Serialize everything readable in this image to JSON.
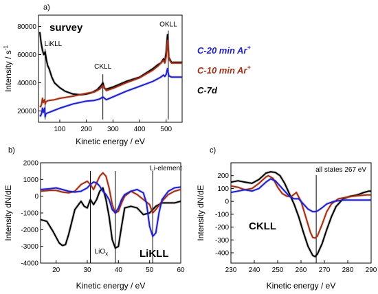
{
  "panels": {
    "a": {
      "label": "a)",
      "title": "survey"
    },
    "b": {
      "label": "b)",
      "title": "LiKLL"
    },
    "c": {
      "label": "c)",
      "title": "CKLL"
    }
  },
  "legend": [
    {
      "name": "C-20 min Ar",
      "sup": "+",
      "color": "#2020c8"
    },
    {
      "name": "C-10 min Ar",
      "sup": "+",
      "color": "#a03018"
    },
    {
      "name": "C-7d",
      "sup": "",
      "color": "#000000"
    }
  ],
  "chart_data": [
    {
      "id": "a",
      "type": "line",
      "title": "survey",
      "xlabel": "Kinetic energy / eV",
      "ylabel": "Intensity / s",
      "ylabel_sup": "-1",
      "xlim": [
        20,
        560
      ],
      "ylim": [
        12000,
        88000
      ],
      "xticks": [
        100,
        200,
        300,
        400,
        500
      ],
      "yticks": [
        20000,
        40000,
        60000,
        80000
      ],
      "annotations": [
        {
          "text": "LiKLL",
          "x": 45,
          "y": 66000,
          "line_from": 64000,
          "line_to": 14000
        },
        {
          "text": "CKLL",
          "x": 262,
          "y": 50000,
          "line_from": 46000,
          "line_to": 14000
        },
        {
          "text": "OKLL",
          "x": 508,
          "y": 80000,
          "line_from": 77000,
          "line_to": 14000
        }
      ],
      "series": [
        {
          "name": "C-7d",
          "color": "#000000",
          "x": [
            25,
            30,
            35,
            40,
            45,
            50,
            55,
            60,
            70,
            80,
            100,
            120,
            150,
            180,
            200,
            220,
            240,
            250,
            255,
            262,
            268,
            275,
            300,
            350,
            400,
            450,
            470,
            480,
            490,
            495,
            500,
            505,
            510,
            520,
            540,
            560
          ],
          "y": [
            76000,
            68000,
            63000,
            60000,
            62000,
            56000,
            52000,
            50000,
            44000,
            40000,
            36500,
            34000,
            32000,
            31500,
            32000,
            33000,
            35000,
            37000,
            38000,
            40000,
            36000,
            35500,
            37000,
            41000,
            44000,
            50000,
            53000,
            54000,
            57000,
            55000,
            62000,
            74000,
            58000,
            54500,
            54500,
            54500
          ]
        },
        {
          "name": "C-10 min Ar+",
          "color": "#a03018",
          "x": [
            25,
            28,
            32,
            35,
            38,
            40,
            43,
            45,
            48,
            52,
            60,
            80,
            100,
            150,
            200,
            230,
            250,
            262,
            275,
            300,
            350,
            400,
            450,
            470,
            480,
            490,
            495,
            500,
            505,
            510,
            520,
            540,
            560
          ],
          "y": [
            23500,
            23000,
            25000,
            29000,
            26000,
            27000,
            28000,
            25000,
            26500,
            27000,
            27500,
            28000,
            29000,
            30500,
            32500,
            33500,
            35500,
            38000,
            34500,
            36000,
            40000,
            43500,
            49000,
            52000,
            54000,
            56000,
            54000,
            58500,
            70000,
            57000,
            54000,
            54000,
            54000
          ]
        },
        {
          "name": "C-20 min Ar+",
          "color": "#2020c8",
          "x": [
            25,
            28,
            32,
            35,
            38,
            40,
            43,
            45,
            48,
            52,
            60,
            80,
            100,
            150,
            200,
            230,
            250,
            262,
            275,
            300,
            350,
            400,
            450,
            470,
            480,
            490,
            495,
            500,
            505,
            510,
            520,
            540,
            560
          ],
          "y": [
            17000,
            16500,
            18500,
            22000,
            19000,
            20000,
            22000,
            16000,
            18000,
            18500,
            19000,
            20500,
            22000,
            25000,
            27000,
            27500,
            28500,
            30000,
            28000,
            30000,
            34000,
            37500,
            41000,
            43000,
            44000,
            45500,
            44500,
            46000,
            50000,
            45000,
            44000,
            44000,
            44000
          ]
        }
      ]
    },
    {
      "id": "b",
      "type": "line",
      "title": "LiKLL",
      "xlabel": "Kinetic energy / eV",
      "ylabel": "Intensity dN/dE",
      "xlim": [
        15,
        60
      ],
      "ylim": [
        -4000,
        2000
      ],
      "xticks": [
        20,
        30,
        40,
        50,
        60
      ],
      "yticks": [
        -4000,
        -3000,
        -2000,
        -1000,
        0,
        1000,
        2000
      ],
      "annotations": [
        {
          "text": "LiO",
          "sub": "x",
          "x": 31,
          "y": -3700,
          "line_x": 31
        },
        {
          "text": "",
          "x": 39,
          "y": 0,
          "line_x": 39
        },
        {
          "text": "Li-element",
          "x": 51,
          "y": 2000,
          "line_x": 51
        }
      ],
      "series": [
        {
          "name": "C-7d",
          "color": "#000000",
          "x": [
            15,
            17,
            19,
            21,
            22,
            23,
            24,
            26,
            28,
            29,
            30,
            31,
            32,
            33,
            34,
            35,
            36,
            37,
            38,
            39,
            40,
            41,
            42,
            44,
            46,
            48,
            50,
            52,
            54,
            56,
            58,
            60
          ],
          "y": [
            -1400,
            -1500,
            -2100,
            -2800,
            -2950,
            -2900,
            -2300,
            -800,
            -300,
            -600,
            -700,
            -200,
            -500,
            -200,
            300,
            500,
            -200,
            -1200,
            -2600,
            -3100,
            -3000,
            -1800,
            -700,
            -600,
            -700,
            -1100,
            -1000,
            -600,
            -400,
            -400,
            -400,
            -300
          ]
        },
        {
          "name": "C-10 min Ar+",
          "color": "#a03018",
          "x": [
            15,
            18,
            20,
            22,
            24,
            26,
            28,
            30,
            31,
            32,
            33,
            34,
            35,
            36,
            37,
            38,
            39,
            40,
            41,
            42,
            44,
            46,
            48,
            50,
            51,
            52,
            54,
            56,
            58,
            60
          ],
          "y": [
            300,
            350,
            350,
            250,
            200,
            300,
            700,
            900,
            700,
            400,
            800,
            1200,
            1400,
            1200,
            500,
            -500,
            -1000,
            -900,
            -400,
            0,
            300,
            100,
            -200,
            -500,
            -1000,
            -800,
            -300,
            100,
            300,
            400
          ]
        },
        {
          "name": "C-20 min Ar+",
          "color": "#2020c8",
          "x": [
            15,
            18,
            20,
            22,
            24,
            26,
            28,
            30,
            31,
            32,
            33,
            34,
            35,
            36,
            37,
            38,
            39,
            40,
            41,
            42,
            44,
            46,
            48,
            49,
            50,
            51,
            52,
            53,
            54,
            56,
            58,
            60
          ],
          "y": [
            400,
            450,
            500,
            400,
            300,
            250,
            300,
            500,
            700,
            850,
            800,
            600,
            300,
            100,
            -200,
            -800,
            -1000,
            -700,
            -200,
            100,
            300,
            400,
            200,
            -400,
            -1800,
            -2400,
            -2200,
            -1000,
            -200,
            300,
            500,
            550
          ]
        }
      ]
    },
    {
      "id": "c",
      "type": "line",
      "title": "CKLL",
      "xlabel": "Kinetic energy / eV",
      "ylabel": "Intensity dN/dE",
      "xlim": [
        230,
        290
      ],
      "ylim": [
        -480,
        300
      ],
      "xticks": [
        230,
        240,
        250,
        260,
        270,
        280,
        290
      ],
      "yticks": [
        -400,
        -300,
        -200,
        -100,
        0,
        100,
        200
      ],
      "annotations": [
        {
          "text": "all states 267 eV",
          "x": 267,
          "y": 270,
          "line_x": 266.5
        }
      ],
      "series": [
        {
          "name": "C-7d",
          "color": "#000000",
          "x": [
            230,
            233,
            236,
            239,
            242,
            245,
            247,
            249,
            251,
            253,
            255,
            257,
            259,
            261,
            263,
            265,
            266,
            267,
            269,
            271,
            273,
            275,
            278,
            281,
            284,
            287,
            289,
            290
          ],
          "y": [
            150,
            160,
            150,
            140,
            170,
            220,
            230,
            225,
            200,
            140,
            60,
            -20,
            -120,
            -240,
            -350,
            -420,
            -430,
            -410,
            -330,
            -220,
            -120,
            -40,
            20,
            40,
            50,
            70,
            80,
            80
          ]
        },
        {
          "name": "C-10 min Ar+",
          "color": "#a03018",
          "x": [
            230,
            233,
            236,
            239,
            242,
            245,
            246,
            248,
            250,
            252,
            254,
            256,
            258,
            260,
            262,
            264,
            265,
            266,
            267,
            269,
            271,
            273,
            276,
            279,
            282,
            285,
            288,
            290
          ],
          "y": [
            120,
            110,
            90,
            100,
            140,
            190,
            200,
            180,
            110,
            60,
            40,
            40,
            70,
            0,
            -120,
            -240,
            -280,
            -285,
            -270,
            -180,
            -80,
            -20,
            20,
            30,
            40,
            45,
            50,
            50
          ]
        },
        {
          "name": "C-20 min Ar+",
          "color": "#2020c8",
          "x": [
            230,
            233,
            236,
            239,
            242,
            245,
            247,
            249,
            251,
            253,
            255,
            257,
            259,
            261,
            263,
            265,
            266,
            267,
            269,
            271,
            274,
            278,
            282,
            286,
            290
          ],
          "y": [
            70,
            80,
            90,
            80,
            100,
            150,
            175,
            160,
            120,
            80,
            40,
            20,
            20,
            -20,
            -60,
            -80,
            -80,
            -75,
            -50,
            -20,
            0,
            10,
            10,
            10,
            10
          ]
        }
      ]
    }
  ]
}
